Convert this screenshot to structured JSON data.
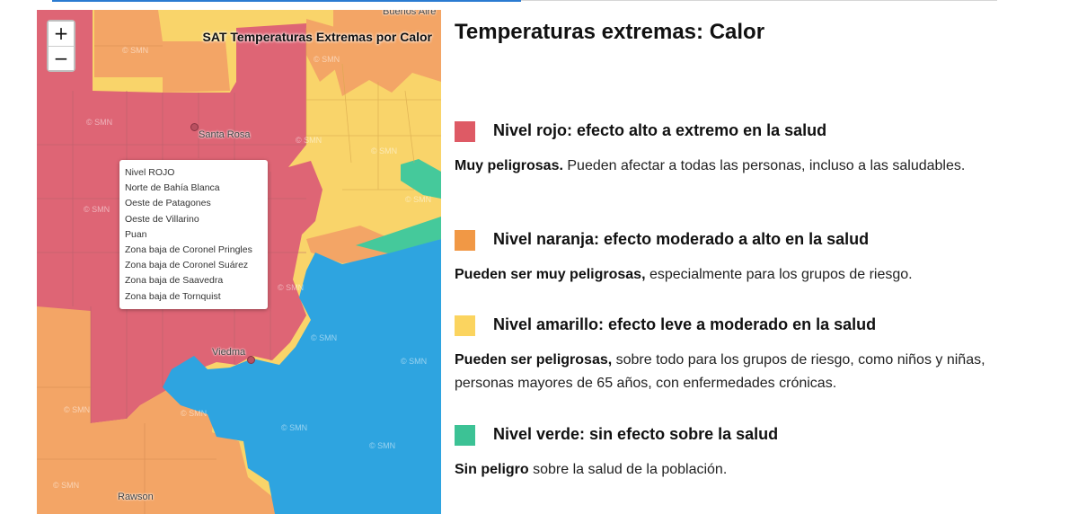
{
  "map": {
    "title": "SAT Temperaturas Extremas por Calor",
    "zoom_in": "+",
    "zoom_out": "−",
    "cities": {
      "buenos_aires": "Buenos Aire",
      "santa_rosa": "Santa Rosa",
      "viedma": "Viedma",
      "rawson": "Rawson"
    },
    "watermark": "SMN",
    "tooltip": [
      "Nivel ROJO",
      "Norte de Bahía Blanca",
      "Oeste de Patagones",
      "Oeste de Villarino",
      "Puan",
      "Zona baja de Coronel Pringles",
      "Zona baja de Coronel Suárez",
      "Zona baja de Saavedra",
      "Zona baja de Tornquist"
    ],
    "colors": {
      "red": "#de6575",
      "orange": "#f3a566",
      "yellow": "#f9d46a",
      "green": "#45c99b",
      "sea": "#2ea4e0"
    }
  },
  "legend": {
    "title": "Temperaturas extremas: Calor",
    "levels": [
      {
        "color": "#de5a65",
        "title": "Nivel rojo: efecto alto a extremo en la salud",
        "bold": "Muy peligrosas.",
        "text": " Pueden afectar a todas las personas, incluso a las saludables."
      },
      {
        "color": "#f19845",
        "title": "Nivel naranja: efecto moderado a alto en la salud",
        "bold": "Pueden ser muy peligrosas,",
        "text": " especialmente para los grupos de riesgo."
      },
      {
        "color": "#fbd45f",
        "title": "Nivel amarillo: efecto leve a moderado en la salud",
        "bold": "Pueden ser peligrosas,",
        "text": " sobre todo para los grupos de riesgo, como niños y niñas, personas mayores de 65 años, con enfermedades crónicas."
      },
      {
        "color": "#3cc295",
        "title": "Nivel verde: sin efecto sobre la salud",
        "bold": "Sin peligro",
        "text": " sobre la salud de la población."
      }
    ]
  }
}
